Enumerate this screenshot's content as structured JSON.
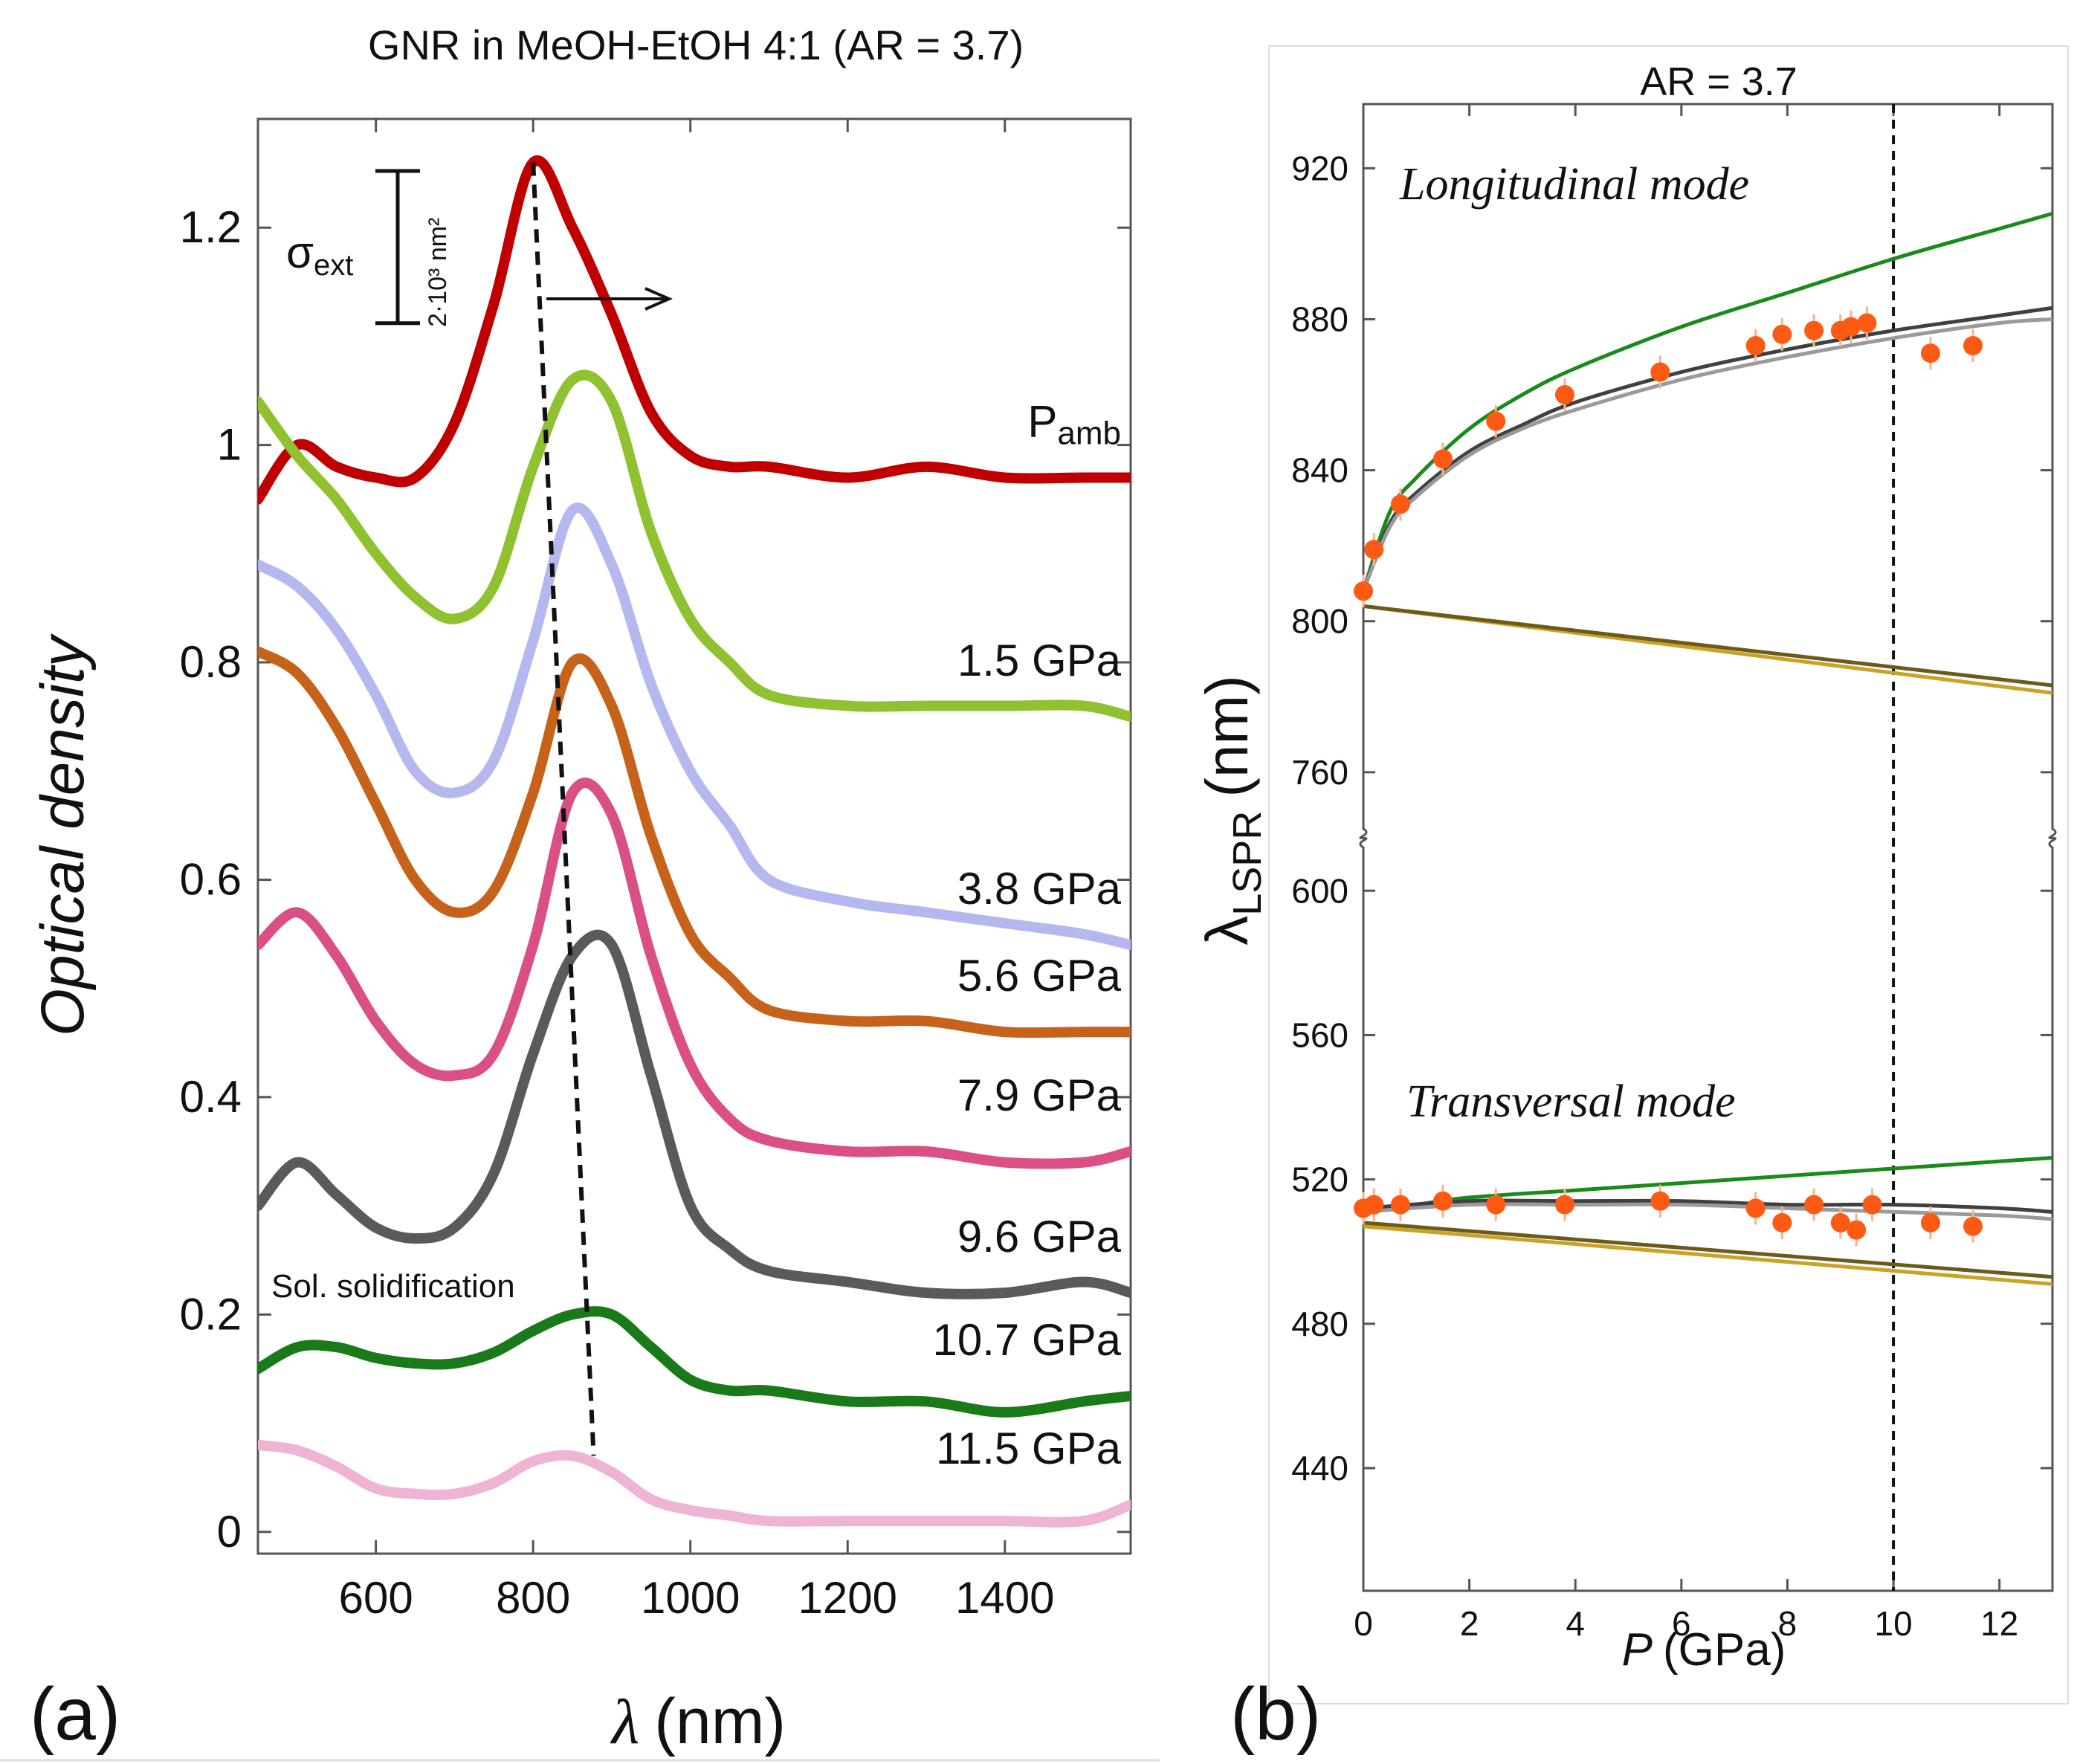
{
  "chart_data": [
    {
      "panel_label": "(a)",
      "type": "line",
      "title": "GNR in MeOH-EtOH 4:1 (AR = 3.7)",
      "xlabel_symbol": "λ",
      "xlabel_unit": "(nm)",
      "ylabel": "Optical density",
      "xlim": [
        450,
        1560
      ],
      "ylim": [
        -0.02,
        1.3
      ],
      "xticks": [
        "600",
        "800",
        "1000",
        "1200",
        "1400"
      ],
      "xtick_values": [
        600,
        800,
        1000,
        1200,
        1400
      ],
      "yticks": [
        "0",
        "0.2",
        "0.4",
        "0.6",
        "0.8",
        "1",
        "1.2"
      ],
      "ytick_values": [
        0,
        0.2,
        0.4,
        0.6,
        0.8,
        1.0,
        1.2
      ],
      "scale_bar": {
        "symbol": "σ",
        "subscript": "ext",
        "value_text": "2·10³ nm²",
        "od_span": 0.14
      },
      "annotation": "Sol. solidification",
      "x": [
        450,
        500,
        550,
        600,
        650,
        700,
        750,
        800,
        850,
        900,
        950,
        1000,
        1050,
        1100,
        1200,
        1300,
        1400,
        1500,
        1560
      ],
      "series": [
        {
          "name": "Pamb",
          "label_main": "P",
          "label_sub": "amb",
          "color": "#c00000",
          "values": [
            0.95,
            1.0,
            0.98,
            0.97,
            0.97,
            1.02,
            1.13,
            1.26,
            1.2,
            1.12,
            1.03,
            0.99,
            0.98,
            0.98,
            0.97,
            0.98,
            0.97,
            0.97,
            0.97
          ]
        },
        {
          "name": "1.5 GPa",
          "color": "#8fc130",
          "values": [
            1.04,
            0.99,
            0.95,
            0.9,
            0.86,
            0.84,
            0.87,
            0.98,
            1.06,
            1.04,
            0.92,
            0.84,
            0.8,
            0.77,
            0.76,
            0.76,
            0.76,
            0.76,
            0.75
          ]
        },
        {
          "name": "3.8 GPa",
          "color": "#b4b8ef",
          "values": [
            0.89,
            0.87,
            0.83,
            0.77,
            0.7,
            0.68,
            0.71,
            0.82,
            0.94,
            0.89,
            0.78,
            0.7,
            0.65,
            0.6,
            0.58,
            0.57,
            0.56,
            0.55,
            0.54
          ]
        },
        {
          "name": "5.6 GPa",
          "color": "#c7621a",
          "values": [
            0.81,
            0.79,
            0.74,
            0.67,
            0.6,
            0.57,
            0.59,
            0.68,
            0.8,
            0.76,
            0.64,
            0.55,
            0.51,
            0.48,
            0.47,
            0.47,
            0.46,
            0.46,
            0.46
          ]
        },
        {
          "name": "7.9 GPa",
          "color": "#d94f86",
          "values": [
            0.54,
            0.57,
            0.53,
            0.47,
            0.43,
            0.42,
            0.44,
            0.54,
            0.68,
            0.66,
            0.53,
            0.43,
            0.38,
            0.36,
            0.35,
            0.35,
            0.34,
            0.34,
            0.35
          ]
        },
        {
          "name": "9.6 GPa",
          "color": "#5a5a5a",
          "values": [
            0.3,
            0.34,
            0.31,
            0.28,
            0.27,
            0.28,
            0.33,
            0.44,
            0.53,
            0.54,
            0.42,
            0.3,
            0.26,
            0.24,
            0.23,
            0.22,
            0.22,
            0.23,
            0.22
          ]
        },
        {
          "name": "10.7 GPa",
          "color": "#1a7a1a",
          "values": [
            0.15,
            0.17,
            0.17,
            0.16,
            0.155,
            0.155,
            0.165,
            0.185,
            0.2,
            0.2,
            0.17,
            0.14,
            0.13,
            0.13,
            0.12,
            0.12,
            0.11,
            0.12,
            0.125
          ]
        },
        {
          "name": "11.5 GPa",
          "color": "#efb3d4",
          "values": [
            0.08,
            0.075,
            0.06,
            0.04,
            0.035,
            0.035,
            0.045,
            0.065,
            0.07,
            0.055,
            0.03,
            0.02,
            0.015,
            0.01,
            0.01,
            0.01,
            0.01,
            0.01,
            0.025
          ]
        }
      ],
      "peak_trend": {
        "x": [
          800,
          877
        ],
        "y": [
          1.26,
          0.07
        ]
      }
    },
    {
      "panel_label": "(b)",
      "type": "scatter",
      "title": "AR = 3.7",
      "xlabel_italic": "P",
      "xlabel_unit": "(GPa)",
      "ylabel_symbol": "λ",
      "ylabel_sub": "LSPR",
      "ylabel_unit": "(nm)",
      "xlim": [
        0,
        13
      ],
      "xticks": [
        "0",
        "2",
        "4",
        "6",
        "8",
        "10",
        "12"
      ],
      "xtick_values": [
        0,
        2,
        4,
        6,
        8,
        10,
        12
      ],
      "broken_axis": true,
      "upper_ylim": [
        745,
        937
      ],
      "lower_ylim": [
        406,
        612
      ],
      "yticks_upper": [
        "760",
        "800",
        "840",
        "880",
        "920"
      ],
      "ytick_values_upper": [
        760,
        800,
        840,
        880,
        920
      ],
      "yticks_lower": [
        "440",
        "480",
        "520",
        "560",
        "600"
      ],
      "ytick_values_lower": [
        440,
        480,
        520,
        560,
        600
      ],
      "vertical_line_x": 10,
      "annotations": [
        "Longitudinal mode",
        "Transversal mode"
      ],
      "longitudinal_points": {
        "P": [
          0,
          0.2,
          0.7,
          1.5,
          2.5,
          3.8,
          5.6,
          7.4,
          7.9,
          8.5,
          9.0,
          9.2,
          9.5,
          10.7,
          11.5
        ],
        "lambda": [
          808,
          819,
          831,
          843,
          853,
          860,
          866,
          873,
          876,
          877,
          877,
          878,
          879,
          871,
          873
        ]
      },
      "transversal_points": {
        "P": [
          0,
          0.2,
          0.7,
          1.5,
          2.5,
          3.8,
          5.6,
          7.4,
          7.9,
          8.5,
          9.0,
          9.3,
          9.6,
          10.7,
          11.5
        ],
        "lambda": [
          512,
          513,
          513,
          514,
          513,
          513,
          514,
          512,
          508,
          513,
          508,
          506,
          513,
          508,
          507
        ]
      },
      "model_curves": [
        {
          "name": "green-longitudinal",
          "color": "#1a8a1a",
          "P": [
            0,
            0.5,
            1,
            2,
            3,
            4,
            6,
            8,
            10,
            12,
            13
          ],
          "lambda": [
            808,
            829,
            838,
            851,
            860,
            867,
            878,
            887,
            896,
            904,
            908
          ]
        },
        {
          "name": "gray-longitudinal",
          "color": "#404040",
          "P": [
            0,
            0.5,
            1,
            2,
            3,
            4,
            6,
            8,
            10,
            12,
            13
          ],
          "lambda": [
            808,
            826,
            834,
            845,
            852,
            858,
            866,
            872,
            877,
            881,
            883
          ]
        },
        {
          "name": "gray-longitudinal-2",
          "color": "#9a9a9a",
          "P": [
            0,
            0.5,
            1,
            2,
            3,
            4,
            6,
            8,
            10,
            12,
            13
          ],
          "lambda": [
            808,
            825,
            833,
            844,
            851,
            856,
            864,
            870,
            875,
            879,
            880
          ]
        },
        {
          "name": "gold-longitudinal",
          "color": "#c9a227",
          "P": [
            0,
            13
          ],
          "lambda": [
            804,
            781
          ]
        },
        {
          "name": "gold-longitudinal-2",
          "color": "#6b5a1a",
          "P": [
            0,
            13
          ],
          "lambda": [
            804,
            783
          ]
        },
        {
          "name": "green-transversal",
          "color": "#1a8a1a",
          "P": [
            0,
            1,
            2,
            4,
            6,
            8,
            10,
            12,
            13
          ],
          "lambda": [
            511,
            513,
            515,
            517,
            519,
            521,
            523,
            525,
            526
          ]
        },
        {
          "name": "gray-transversal",
          "color": "#404040",
          "P": [
            0,
            2,
            4,
            6,
            8,
            10,
            12,
            13
          ],
          "lambda": [
            512,
            514,
            514,
            514,
            513,
            513,
            512,
            511
          ]
        },
        {
          "name": "gray-transversal-2",
          "color": "#9a9a9a",
          "P": [
            0,
            2,
            4,
            6,
            8,
            10,
            12,
            13
          ],
          "lambda": [
            511,
            513,
            513,
            513,
            512,
            511,
            510,
            509
          ]
        },
        {
          "name": "gold-transversal",
          "color": "#c9a227",
          "P": [
            0,
            13
          ],
          "lambda": [
            507,
            491
          ]
        },
        {
          "name": "gold-transversal-2",
          "color": "#6b5a1a",
          "P": [
            0,
            13
          ],
          "lambda": [
            508,
            493
          ]
        }
      ],
      "point_color": "#ff5a14"
    }
  ]
}
